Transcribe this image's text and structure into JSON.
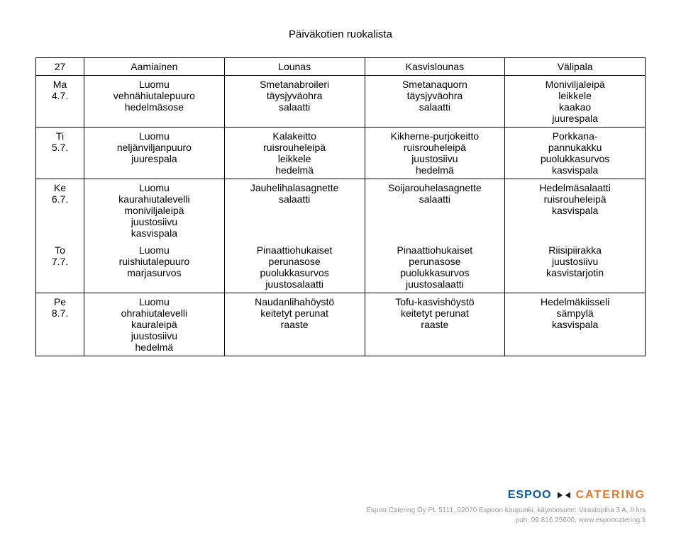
{
  "title": "Päiväkotien ruokalista",
  "headers": {
    "week": "27",
    "breakfast": "Aamiainen",
    "lunch": "Lounas",
    "veglunch": "Kasvislounas",
    "snack": "Välipala"
  },
  "rows": [
    {
      "day": [
        "Ma",
        "4.7."
      ],
      "breakfast": [
        "Luomu",
        "vehnähiutalepuuro",
        "hedelmäsose"
      ],
      "lunch": [
        "Smetanabroileri",
        "täysjyväohra",
        "salaatti"
      ],
      "veglunch": [
        "Smetanaquorn",
        "täysjyväohra",
        "salaatti"
      ],
      "snack": [
        "Moniviljaleipä",
        "leikkele",
        "kaakao",
        "juurespala"
      ]
    },
    {
      "day": [
        "Ti",
        "5.7."
      ],
      "breakfast": [
        "Luomu",
        "neljänviljanpuuro",
        "juurespala"
      ],
      "lunch": [
        "Kalakeitto",
        "ruisrouheleipä",
        "leikkele",
        "hedelmä"
      ],
      "veglunch": [
        "Kikherne-purjokeitto",
        "ruisrouheleipä",
        "juustosiivu",
        "hedelmä"
      ],
      "snack": [
        "Porkkana-",
        "pannukakku",
        "puolukkasurvos",
        "kasvispala"
      ]
    },
    {
      "day": [
        "Ke",
        "6.7."
      ],
      "breakfast": [
        "Luomu",
        "kaurahiutalevelli",
        "moniviljaleipä",
        "juustosiivu",
        "kasvispala"
      ],
      "lunch": [
        "Jauhelihalasagnette",
        "salaatti"
      ],
      "veglunch": [
        "Soijarouhelasagnette",
        "salaatti"
      ],
      "snack": [
        "Hedelmäsalaatti",
        "ruisrouheleipä",
        "kasvispala"
      ]
    },
    {
      "day": [
        "To",
        "7.7."
      ],
      "breakfast": [
        "Luomu",
        "ruishiutalepuuro",
        "marjasurvos"
      ],
      "lunch": [
        "Pinaattiohukaiset",
        "perunasose",
        "puolukkasurvos",
        "juustosalaatti"
      ],
      "veglunch": [
        "Pinaattiohukaiset",
        "perunasose",
        "puolukkasurvos",
        "juustosalaatti"
      ],
      "snack": [
        "Riisipiirakka",
        "juustosiivu",
        "kasvistarjotin"
      ]
    },
    {
      "day": [
        "Pe",
        "8.7."
      ],
      "breakfast": [
        "Luomu",
        "ohrahiutalevelli",
        "kauraleipä",
        "juustosiivu",
        "hedelmä"
      ],
      "lunch": [
        "Naudanlihahöystö",
        "keitetyt perunat",
        "raaste"
      ],
      "veglunch": [
        "Tofu-kasvishöystö",
        "keitetyt perunat",
        "raaste"
      ],
      "snack": [
        "Hedelmäkiisseli",
        "sämpylä",
        "kasvispala"
      ]
    }
  ],
  "mergeRows": [
    [
      2,
      3
    ]
  ],
  "brand": {
    "espoo": "ESPOO",
    "catering": "CATERING"
  },
  "footer": {
    "line1": "Espoo Catering Oy PL 5111, 02070 Espoon kaupunki, käyntiosoite: Virastopiha 3 A, II krs",
    "line2": "puh. 09 816 25600, www.espoocatering.fi"
  }
}
